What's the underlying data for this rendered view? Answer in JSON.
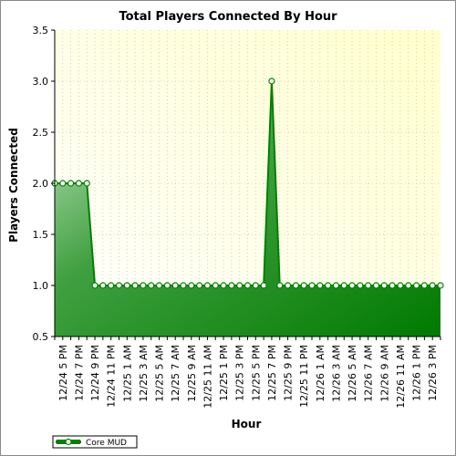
{
  "chart_data": {
    "type": "area",
    "title": "Total Players Connected By Hour",
    "xlabel": "Hour",
    "ylabel": "Players Connected",
    "ylim": [
      0.5,
      3.5
    ],
    "yticks": [
      "0.5",
      "1.0",
      "1.5",
      "2.0",
      "2.5",
      "3.0",
      "3.5"
    ],
    "grid": true,
    "legend_position": "bottom-left",
    "x_tick_labels": [
      "12/24 5 PM",
      "12/24 7 PM",
      "12/24 9 PM",
      "12/24 11 PM",
      "12/25 1 AM",
      "12/25 3 AM",
      "12/25 5 AM",
      "12/25 7 AM",
      "12/25 9 AM",
      "12/25 11 AM",
      "12/25 1 PM",
      "12/25 3 PM",
      "12/25 5 PM",
      "12/25 7 PM",
      "12/25 9 PM",
      "12/25 11 PM",
      "12/26 1 AM",
      "12/26 3 AM",
      "12/26 5 AM",
      "12/26 7 AM",
      "12/26 9 AM",
      "12/26 11 AM",
      "12/26 1 PM",
      "12/26 3 PM"
    ],
    "x": [
      "12/24 4 PM",
      "12/24 5 PM",
      "12/24 6 PM",
      "12/24 7 PM",
      "12/24 8 PM",
      "12/24 9 PM",
      "12/24 10 PM",
      "12/24 11 PM",
      "12/25 12 AM",
      "12/25 1 AM",
      "12/25 2 AM",
      "12/25 3 AM",
      "12/25 4 AM",
      "12/25 5 AM",
      "12/25 6 AM",
      "12/25 7 AM",
      "12/25 8 AM",
      "12/25 9 AM",
      "12/25 10 AM",
      "12/25 11 AM",
      "12/25 12 PM",
      "12/25 1 PM",
      "12/25 2 PM",
      "12/25 3 PM",
      "12/25 4 PM",
      "12/25 5 PM",
      "12/25 6 PM",
      "12/25 7 PM",
      "12/25 8 PM",
      "12/25 9 PM",
      "12/25 10 PM",
      "12/25 11 PM",
      "12/26 12 AM",
      "12/26 1 AM",
      "12/26 2 AM",
      "12/26 3 AM",
      "12/26 4 AM",
      "12/26 5 AM",
      "12/26 6 AM",
      "12/26 7 AM",
      "12/26 8 AM",
      "12/26 9 AM",
      "12/26 10 AM",
      "12/26 11 AM",
      "12/26 12 PM",
      "12/26 1 PM",
      "12/26 2 PM",
      "12/26 3 PM",
      "12/26 4 PM"
    ],
    "series": [
      {
        "name": "Core MUD",
        "color": "#008000",
        "values": [
          2,
          2,
          2,
          2,
          2,
          1,
          1,
          1,
          1,
          1,
          1,
          1,
          1,
          1,
          1,
          1,
          1,
          1,
          1,
          1,
          1,
          1,
          1,
          1,
          1,
          1,
          1,
          3,
          1,
          1,
          1,
          1,
          1,
          1,
          1,
          1,
          1,
          1,
          1,
          1,
          1,
          1,
          1,
          1,
          1,
          1,
          1,
          1,
          1
        ]
      }
    ]
  }
}
